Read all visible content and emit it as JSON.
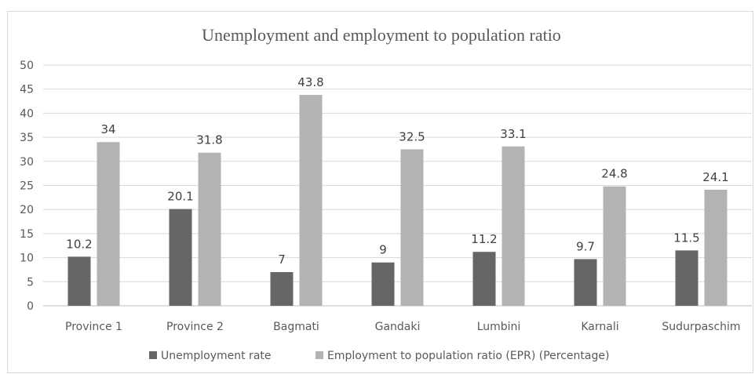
{
  "chart_data": {
    "type": "bar",
    "title": "Unemployment and employment to population ratio",
    "xlabel": "",
    "ylabel": "",
    "ylim": [
      0,
      50
    ],
    "yticks": [
      0,
      5,
      10,
      15,
      20,
      25,
      30,
      35,
      40,
      45,
      50
    ],
    "grid": true,
    "legend_position": "bottom",
    "categories": [
      "Province 1",
      "Province 2",
      "Bagmati",
      "Gandaki",
      "Lumbini",
      "Karnali",
      "Sudurpaschim"
    ],
    "series": [
      {
        "name": "Unemployment rate",
        "color": "#666666",
        "values": [
          10.2,
          20.1,
          7,
          9,
          11.2,
          9.7,
          11.5
        ]
      },
      {
        "name": "Employment to population ratio (EPR) (Percentage)",
        "color": "#b3b3b3",
        "values": [
          34,
          31.8,
          43.8,
          32.5,
          33.1,
          24.8,
          24.1
        ]
      }
    ]
  }
}
